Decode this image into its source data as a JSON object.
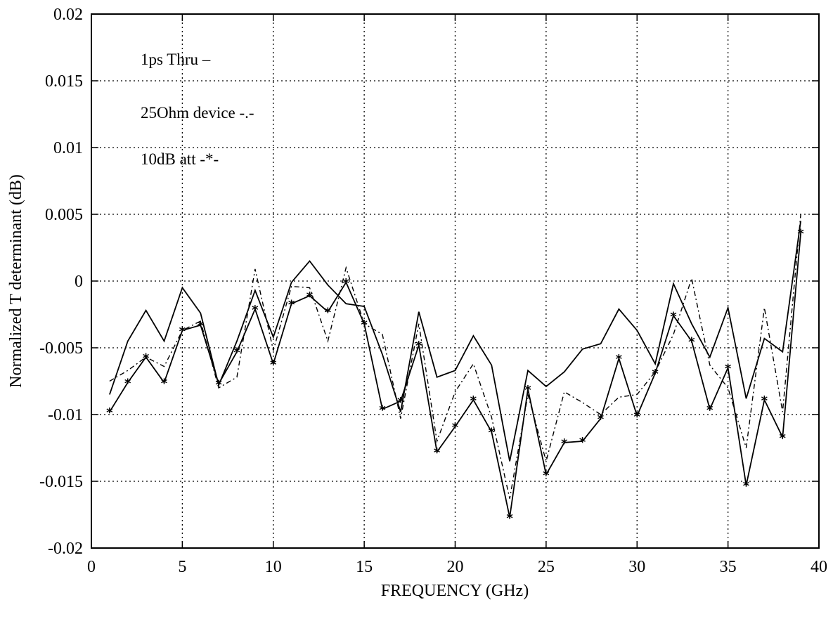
{
  "chart_data": {
    "type": "line",
    "title": "",
    "xlabel": "FREQUENCY (GHz)",
    "ylabel": "Normalized T determinant (dB)",
    "xlim": [
      0,
      40
    ],
    "ylim": [
      -0.02,
      0.02
    ],
    "grid": true,
    "xticks": [
      0,
      5,
      10,
      15,
      20,
      25,
      30,
      35,
      40
    ],
    "xtick_labels": [
      "0",
      "5",
      "10",
      "15",
      "20",
      "25",
      "30",
      "35",
      "40"
    ],
    "yticks": [
      0.02,
      0.015,
      0.01,
      0.005,
      0,
      -0.005,
      -0.01,
      -0.015,
      -0.02
    ],
    "ytick_labels": [
      "0.02",
      "0.015",
      "0.01",
      "0.005",
      "0",
      "-0.005",
      "-0.01",
      "-0.015",
      "-0.02"
    ],
    "legend_position": "top-left",
    "annotations": [
      "1ps Thru –",
      "25Ohm device -.-",
      "10dB att -*-"
    ],
    "x": [
      1,
      2,
      3,
      4,
      5,
      6,
      7,
      8,
      9,
      10,
      11,
      12,
      13,
      14,
      15,
      16,
      17,
      18,
      19,
      20,
      21,
      22,
      23,
      24,
      25,
      26,
      27,
      28,
      29,
      30,
      31,
      32,
      33,
      34,
      35,
      36,
      37,
      38,
      39
    ],
    "series": [
      {
        "style": "solid",
        "values": [
          -0.0085,
          -0.0045,
          -0.0022,
          -0.0045,
          -0.0005,
          -0.0024,
          -0.0078,
          -0.0045,
          -0.0007,
          -0.0042,
          -0.0001,
          0.0015,
          -0.0003,
          -0.0017,
          -0.0019,
          -0.0055,
          -0.0098,
          -0.0023,
          -0.0072,
          -0.0067,
          -0.0041,
          -0.0063,
          -0.0135,
          -0.0067,
          -0.0079,
          -0.0068,
          -0.0051,
          -0.0047,
          -0.0021,
          -0.0037,
          -0.0062,
          -0.0002,
          -0.0032,
          -0.0057,
          -0.002,
          -0.0088,
          -0.0043,
          -0.0053,
          0.0045
        ]
      },
      {
        "style": "dashdot",
        "values": [
          -0.0075,
          -0.0067,
          -0.0057,
          -0.0064,
          -0.0037,
          -0.003,
          -0.008,
          -0.0072,
          0.0009,
          -0.0052,
          -0.0004,
          -0.0005,
          -0.0045,
          0.001,
          -0.0032,
          -0.004,
          -0.0103,
          -0.0032,
          -0.012,
          -0.0083,
          -0.0062,
          -0.0102,
          -0.0163,
          -0.0085,
          -0.0135,
          -0.0083,
          -0.0091,
          -0.01,
          -0.0087,
          -0.0085,
          -0.0068,
          -0.004,
          0.0002,
          -0.0063,
          -0.008,
          -0.0125,
          -0.002,
          -0.0098,
          0.005
        ]
      },
      {
        "style": "solid-star",
        "values": [
          -0.0098,
          -0.0076,
          -0.0057,
          -0.0076,
          -0.0037,
          -0.0033,
          -0.0077,
          -0.0053,
          -0.0021,
          -0.0062,
          -0.0017,
          -0.0011,
          -0.0023,
          -0.0001,
          -0.0032,
          -0.0096,
          -0.009,
          -0.0048,
          -0.0128,
          -0.0109,
          -0.0089,
          -0.0113,
          -0.0177,
          -0.0081,
          -0.0145,
          -0.0121,
          -0.012,
          -0.0103,
          -0.0058,
          -0.0101,
          -0.0069,
          -0.0026,
          -0.0045,
          -0.0096,
          -0.0065,
          -0.0153,
          -0.0089,
          -0.0117,
          0.0036
        ]
      }
    ]
  }
}
